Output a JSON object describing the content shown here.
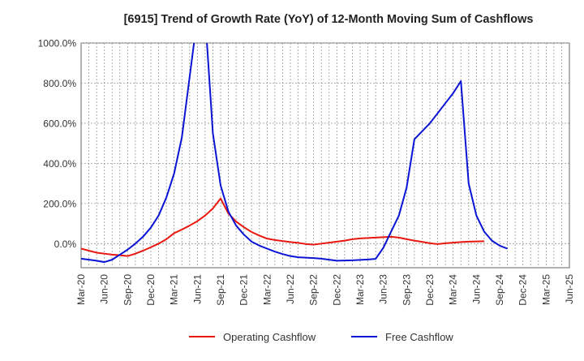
{
  "chart_data": {
    "type": "line",
    "title": "[6915]  Trend of Growth Rate (YoY) of 12-Month Moving Sum of Cashflows",
    "xlabel": "",
    "ylabel": "",
    "ylim": [
      -120,
      1000
    ],
    "y_ticks": [
      0,
      200,
      400,
      600,
      800,
      1000
    ],
    "y_tick_labels": [
      "0.0%",
      "200.0%",
      "400.0%",
      "600.0%",
      "800.0%",
      "1000.0%"
    ],
    "x_tick_labels": [
      "Mar-20",
      "Jun-20",
      "Sep-20",
      "Dec-20",
      "Mar-21",
      "Jun-21",
      "Sep-21",
      "Dec-21",
      "Mar-22",
      "Jun-22",
      "Sep-22",
      "Dec-22",
      "Mar-23",
      "Jun-23",
      "Sep-23",
      "Dec-23",
      "Mar-24",
      "Jun-24",
      "Sep-24",
      "Dec-24",
      "Mar-25",
      "Jun-25"
    ],
    "x_start": "Mar-20",
    "x_step": "1 month",
    "grid": true,
    "legend_position": "bottom",
    "series": [
      {
        "name": "Operating Cashflow",
        "color": "#e8170f",
        "values": [
          -25,
          -35,
          -45,
          -50,
          -55,
          -58,
          -62,
          -50,
          -35,
          -18,
          0,
          22,
          52,
          70,
          90,
          112,
          140,
          175,
          225,
          150,
          110,
          82,
          58,
          40,
          25,
          18,
          13,
          8,
          4,
          -2,
          -5,
          0,
          5,
          10,
          15,
          22,
          26,
          28,
          30,
          32,
          34,
          30,
          22,
          15,
          9,
          2,
          -2,
          2,
          5,
          8,
          10,
          11,
          12
        ]
      },
      {
        "name": "Free Cashflow",
        "color": "#0a14d4",
        "values": [
          -75,
          -80,
          -85,
          -92,
          -80,
          -55,
          -30,
          0,
          35,
          80,
          140,
          230,
          350,
          530,
          830,
          1130,
          1140,
          550,
          290,
          160,
          90,
          45,
          10,
          -10,
          -25,
          -40,
          -52,
          -62,
          -68,
          -70,
          -72,
          -75,
          -80,
          -85,
          -84,
          -83,
          -81,
          -79,
          -76,
          -20,
          60,
          140,
          280,
          520,
          560,
          600,
          650,
          700,
          750,
          810,
          300,
          140,
          60,
          15,
          -10,
          -25
        ]
      }
    ]
  }
}
